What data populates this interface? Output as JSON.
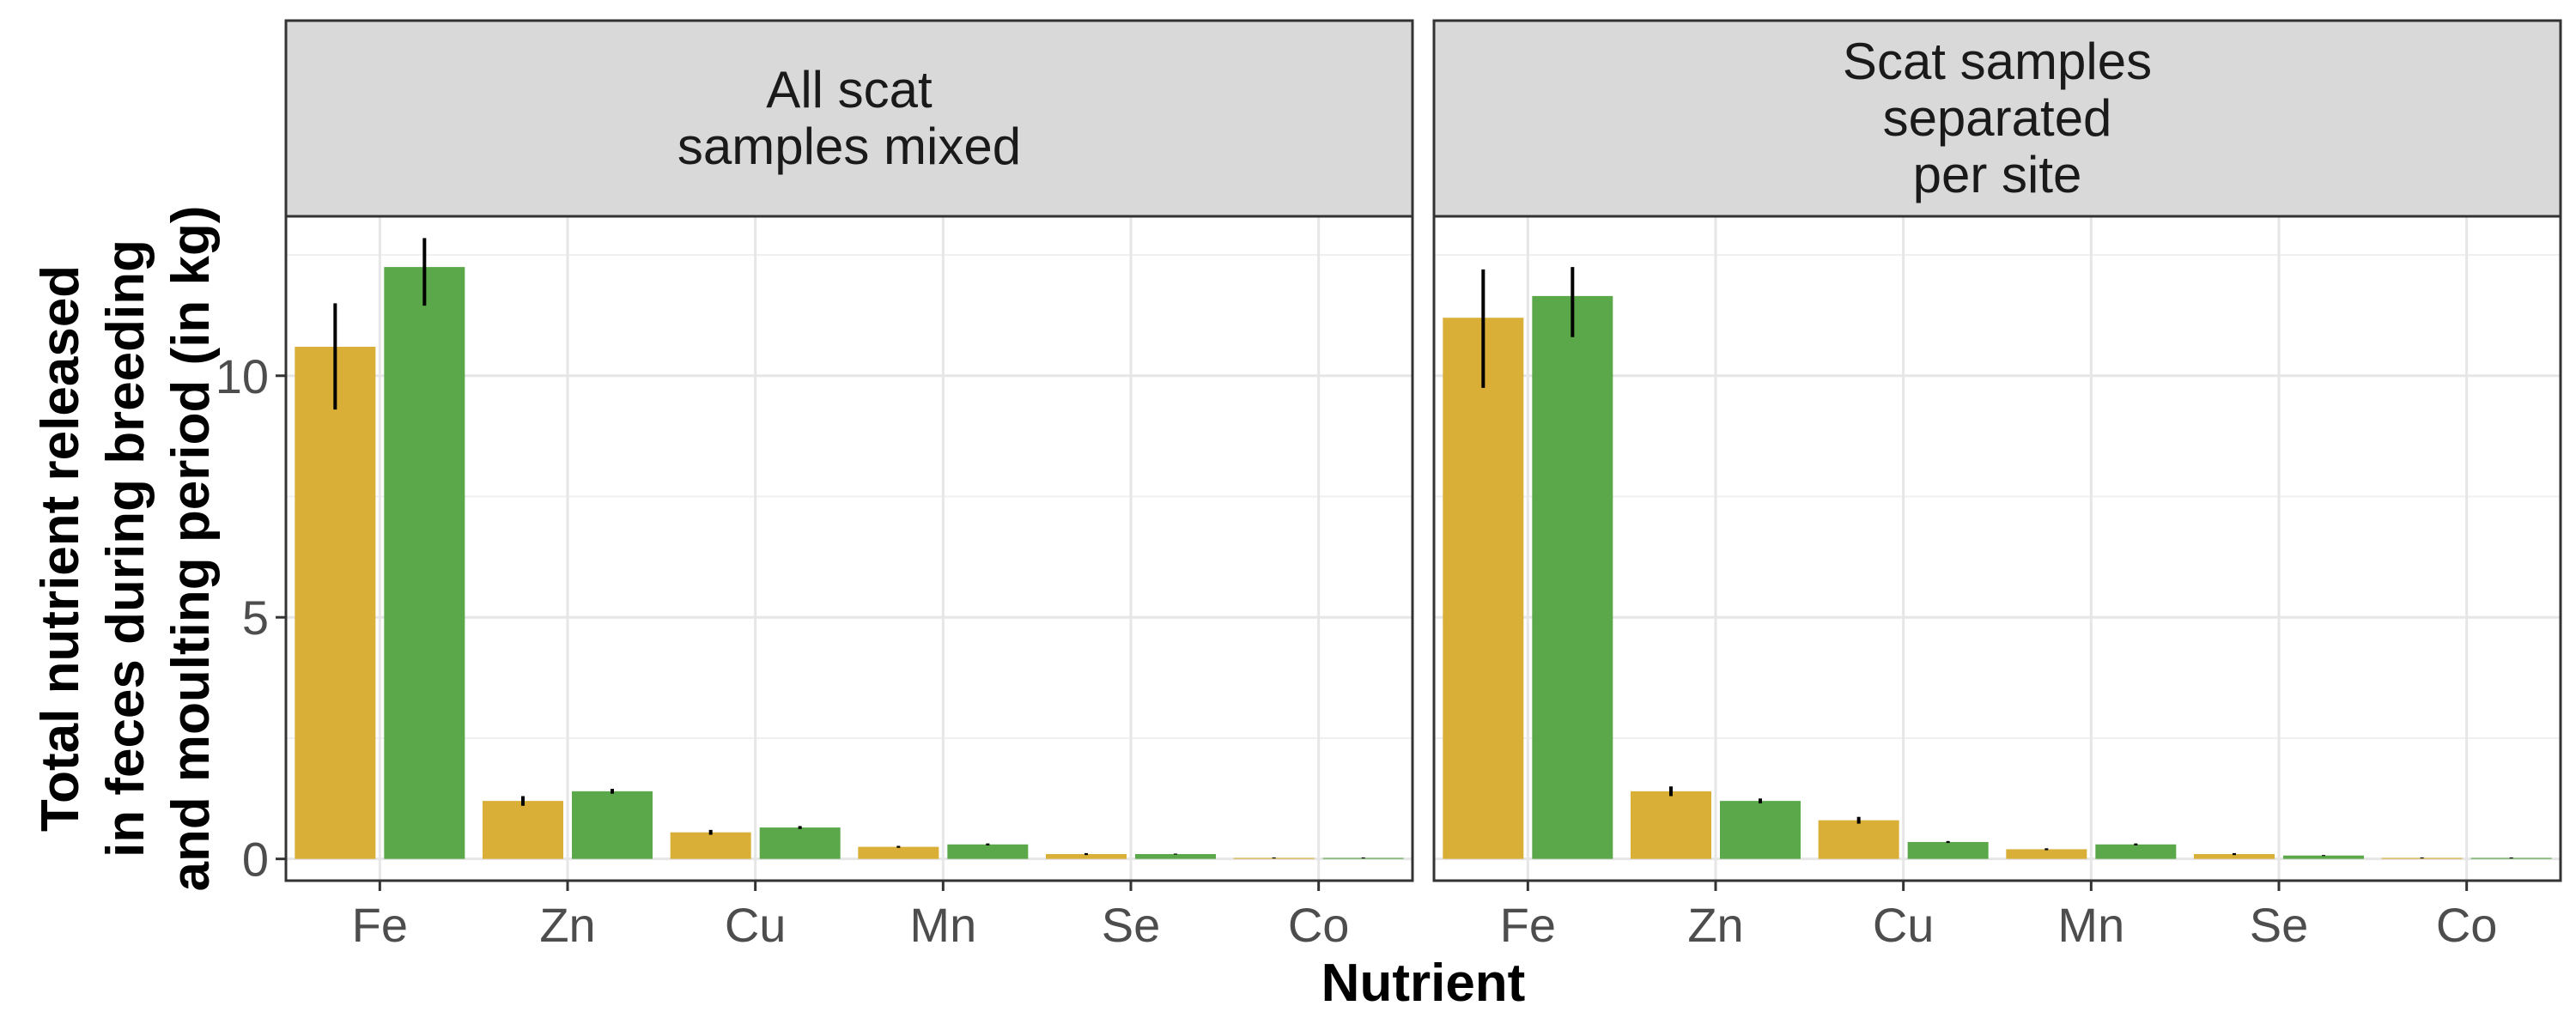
{
  "chart_data": {
    "type": "bar",
    "xlabel": "Nutrient",
    "ylabel": "Total nutrient released\nin feces during breeding\nand moulting period (in kg)",
    "categories": [
      "Fe",
      "Zn",
      "Cu",
      "Mn",
      "Se",
      "Co"
    ],
    "ylim": [
      -0.45,
      13.3
    ],
    "yticks": [
      0,
      5,
      10
    ],
    "grid": true,
    "legend": "none",
    "series_colors": [
      "#D9AF37",
      "#5AA84A"
    ],
    "panels": [
      {
        "title": "All scat\nsamples mixed",
        "series": [
          {
            "values": [
              10.6,
              1.2,
              0.55,
              0.25,
              0.1,
              0.02
            ],
            "errors": [
              [
                9.3,
                11.5
              ],
              [
                1.1,
                1.3
              ],
              [
                0.5,
                0.6
              ],
              [
                0.23,
                0.27
              ],
              [
                0.08,
                0.12
              ],
              [
                0.01,
                0.03
              ]
            ]
          },
          {
            "values": [
              12.25,
              1.4,
              0.65,
              0.3,
              0.1,
              0.02
            ],
            "errors": [
              [
                11.45,
                12.85
              ],
              [
                1.35,
                1.45
              ],
              [
                0.62,
                0.68
              ],
              [
                0.28,
                0.32
              ],
              [
                0.09,
                0.11
              ],
              [
                0.01,
                0.03
              ]
            ]
          }
        ]
      },
      {
        "title": "Scat samples\nseparated\nper site",
        "series": [
          {
            "values": [
              11.2,
              1.4,
              0.8,
              0.2,
              0.1,
              0.02
            ],
            "errors": [
              [
                9.75,
                12.2
              ],
              [
                1.3,
                1.5
              ],
              [
                0.73,
                0.87
              ],
              [
                0.18,
                0.22
              ],
              [
                0.08,
                0.12
              ],
              [
                0.01,
                0.03
              ]
            ]
          },
          {
            "values": [
              11.65,
              1.2,
              0.35,
              0.3,
              0.07,
              0.02
            ],
            "errors": [
              [
                10.8,
                12.25
              ],
              [
                1.15,
                1.25
              ],
              [
                0.33,
                0.37
              ],
              [
                0.28,
                0.32
              ],
              [
                0.06,
                0.08
              ],
              [
                0.01,
                0.03
              ]
            ]
          }
        ]
      }
    ]
  }
}
